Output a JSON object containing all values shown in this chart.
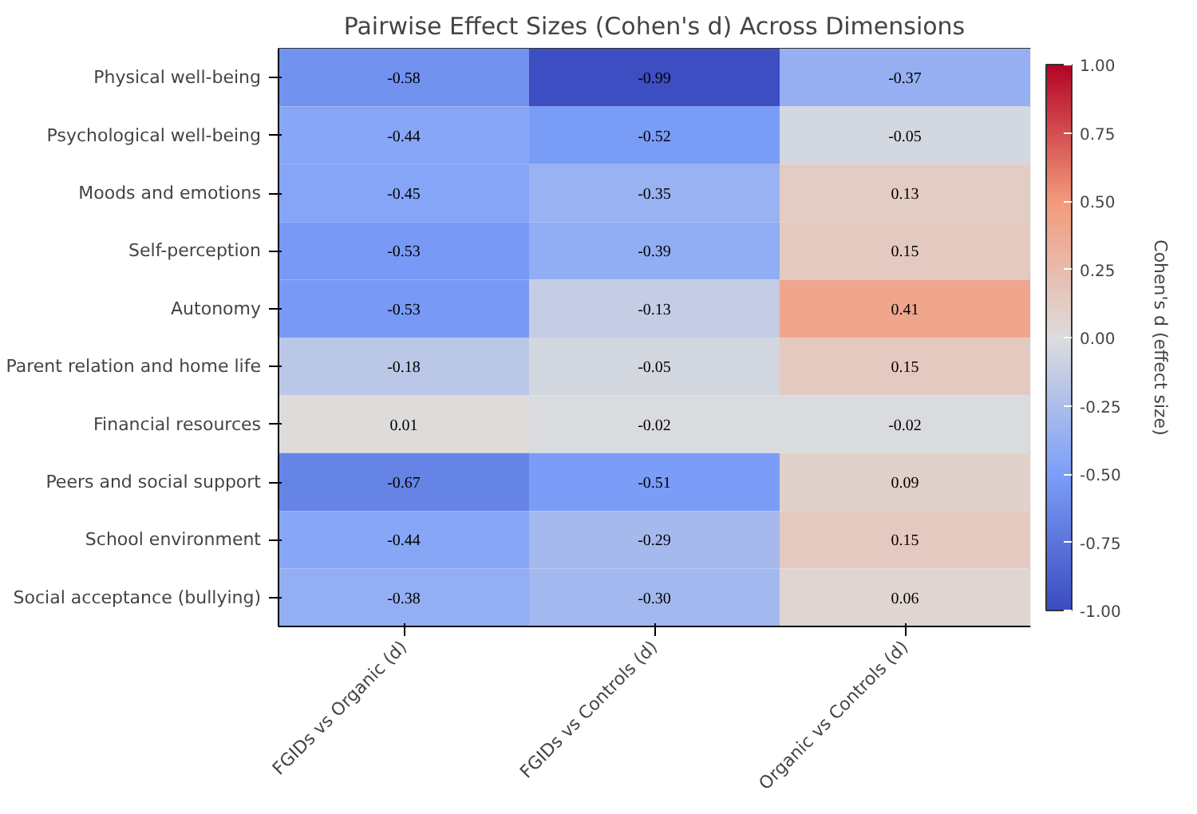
{
  "chart_data": {
    "type": "heatmap",
    "title": "Pairwise Effect Sizes (Cohen's d) Across Dimensions",
    "categories": [
      "FGIDs vs Organic (d)",
      "FGIDs vs Controls (d)",
      "Organic vs Controls (d)"
    ],
    "y_categories": [
      "Physical well-being",
      "Psychological well-being",
      "Moods and emotions",
      "Self-perception",
      "Autonomy",
      "Parent relation and home life",
      "Financial resources",
      "Peers and social support",
      "School environment",
      "Social acceptance (bullying)"
    ],
    "cells": [
      [
        -0.58,
        -0.99,
        -0.37
      ],
      [
        -0.44,
        -0.52,
        -0.05
      ],
      [
        -0.45,
        -0.35,
        0.13
      ],
      [
        -0.53,
        -0.39,
        0.15
      ],
      [
        -0.53,
        -0.13,
        0.41
      ],
      [
        -0.18,
        -0.05,
        0.15
      ],
      [
        0.01,
        -0.02,
        -0.02
      ],
      [
        -0.67,
        -0.51,
        0.09
      ],
      [
        -0.44,
        -0.29,
        0.15
      ],
      [
        -0.38,
        -0.3,
        0.06
      ]
    ],
    "cell_labels": [
      [
        "-0.58",
        "-0.99",
        "-0.37"
      ],
      [
        "-0.44",
        "-0.52",
        "-0.05"
      ],
      [
        "-0.45",
        "-0.35",
        "0.13"
      ],
      [
        "-0.53",
        "-0.39",
        "0.15"
      ],
      [
        "-0.53",
        "-0.13",
        "0.41"
      ],
      [
        "-0.18",
        "-0.05",
        "0.15"
      ],
      [
        "0.01",
        "-0.02",
        "-0.02"
      ],
      [
        "-0.67",
        "-0.51",
        "0.09"
      ],
      [
        "-0.44",
        "-0.29",
        "0.15"
      ],
      [
        "-0.38",
        "-0.30",
        "0.06"
      ]
    ],
    "clim": [
      -1,
      1
    ],
    "cticks": [
      {
        "value": -1,
        "label": "-1.00"
      },
      {
        "value": -0.75,
        "label": "-0.75"
      },
      {
        "value": -0.5,
        "label": "-0.50"
      },
      {
        "value": -0.25,
        "label": "-0.25"
      },
      {
        "value": 0,
        "label": "0.00"
      },
      {
        "value": 0.25,
        "label": "0.25"
      },
      {
        "value": 0.5,
        "label": "0.50"
      },
      {
        "value": 0.75,
        "label": "0.75"
      },
      {
        "value": 1,
        "label": "1.00"
      }
    ],
    "clabel": "Cohen's d (effect size)"
  }
}
